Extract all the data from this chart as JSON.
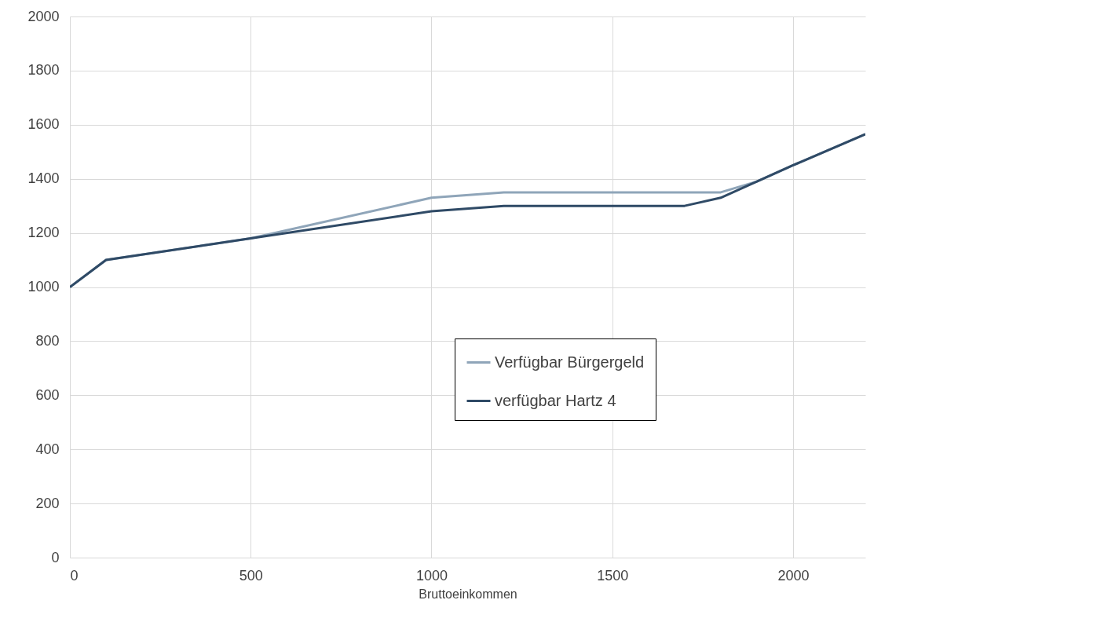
{
  "chart_data": {
    "type": "line",
    "xlabel": "Bruttoeinkommen",
    "x": [
      0,
      100,
      500,
      1000,
      1200,
      1700,
      1800,
      1900,
      2000,
      2200
    ],
    "series": [
      {
        "name": "Verfügbar Bürgergeld",
        "color": "#8fa5b9",
        "values": [
          1000,
          1100,
          1180,
          1330,
          1350,
          1350,
          1350,
          1390,
          1450,
          1565
        ]
      },
      {
        "name": "verfügbar Hartz 4",
        "color": "#2f4a66",
        "values": [
          1000,
          1100,
          1180,
          1280,
          1300,
          1300,
          1330,
          1390,
          1450,
          1565
        ]
      }
    ],
    "xlim": [
      0,
      2200
    ],
    "xticks": [
      0,
      500,
      1000,
      1500,
      2000
    ],
    "ylim": [
      0,
      2000
    ],
    "yticks": [
      0,
      200,
      400,
      600,
      800,
      1000,
      1200,
      1400,
      1600,
      1800,
      2000
    ],
    "grid": true,
    "legend": "bottom",
    "marker": "none",
    "line_style": "solid"
  }
}
